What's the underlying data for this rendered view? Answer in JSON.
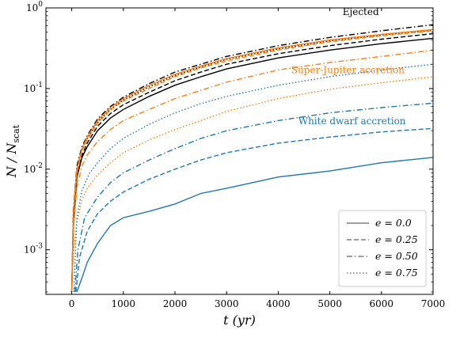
{
  "chart_data": {
    "type": "line",
    "xlabel": "t (yr)",
    "ylabel": "N / N_scat",
    "xlim": [
      -500,
      7000
    ],
    "ylim": [
      0.00028,
      1.0
    ],
    "yscale": "log",
    "grid": false,
    "legend_position": "bottom-right",
    "x_ticks": [
      0,
      1000,
      2000,
      3000,
      4000,
      5000,
      6000,
      7000
    ],
    "y_ticks": [
      0.001,
      0.01,
      0.1,
      1
    ],
    "y_tick_labels": [
      "10^-3",
      "10^-2",
      "10^-1",
      "10^0"
    ],
    "colors": {
      "ejected": "#000000",
      "super_jupiter": "#ff7f0e",
      "white_dwarf": "#1f77b4",
      "axis": "#000000"
    },
    "annotations": [
      {
        "text": "Ejected",
        "group": "ejected",
        "x": 5600,
        "y": 0.82
      },
      {
        "text": "Super-Jupiter accretion",
        "group": "super_jupiter",
        "x": 5350,
        "y": 0.155
      },
      {
        "text": "White dwarf accretion",
        "group": "white_dwarf",
        "x": 5430,
        "y": 0.036
      }
    ],
    "legend": [
      {
        "label": "e = 0.0",
        "e": "0.0",
        "style": "solid"
      },
      {
        "label": "e = 0.25",
        "e": "0.25",
        "style": "dashed"
      },
      {
        "label": "e = 0.50",
        "e": "0.50",
        "style": "dashdot"
      },
      {
        "label": "e = 0.75",
        "e": "0.75",
        "style": "dotted"
      }
    ],
    "series": [
      {
        "group": "ejected",
        "style": "solid",
        "x": [
          0,
          30,
          100,
          200,
          300,
          500,
          750,
          1000,
          1500,
          2000,
          2500,
          3000,
          4000,
          5000,
          6000,
          7000
        ],
        "y": [
          0.0003,
          0.002,
          0.008,
          0.014,
          0.019,
          0.03,
          0.043,
          0.055,
          0.08,
          0.11,
          0.14,
          0.175,
          0.24,
          0.3,
          0.36,
          0.42
        ]
      },
      {
        "group": "ejected",
        "style": "dashed",
        "x": [
          0,
          30,
          100,
          200,
          300,
          500,
          750,
          1000,
          1500,
          2000,
          2500,
          3000,
          4000,
          5000,
          6000,
          7000
        ],
        "y": [
          0.0003,
          0.002,
          0.008,
          0.015,
          0.021,
          0.034,
          0.049,
          0.063,
          0.09,
          0.125,
          0.16,
          0.2,
          0.27,
          0.34,
          0.41,
          0.48
        ]
      },
      {
        "group": "ejected",
        "style": "dashdot",
        "x": [
          0,
          30,
          100,
          200,
          300,
          500,
          750,
          1000,
          1500,
          2000,
          2500,
          3000,
          4000,
          5000,
          6000,
          7000
        ],
        "y": [
          0.0003,
          0.003,
          0.011,
          0.019,
          0.026,
          0.042,
          0.06,
          0.078,
          0.115,
          0.16,
          0.2,
          0.25,
          0.34,
          0.43,
          0.52,
          0.62
        ]
      },
      {
        "group": "ejected",
        "style": "dotted",
        "x": [
          0,
          30,
          100,
          200,
          300,
          500,
          750,
          1000,
          1500,
          2000,
          2500,
          3000,
          4000,
          5000,
          6000,
          7000
        ],
        "y": [
          0.0003,
          0.0028,
          0.01,
          0.018,
          0.024,
          0.038,
          0.055,
          0.072,
          0.105,
          0.145,
          0.185,
          0.23,
          0.31,
          0.39,
          0.46,
          0.53
        ]
      },
      {
        "group": "super_jupiter",
        "style": "solid",
        "x": [
          0,
          30,
          100,
          200,
          300,
          500,
          750,
          1000,
          1500,
          2000,
          2500,
          3000,
          4000,
          5000,
          6000,
          7000
        ],
        "y": [
          0.0003,
          0.0028,
          0.01,
          0.018,
          0.025,
          0.04,
          0.058,
          0.075,
          0.11,
          0.15,
          0.19,
          0.235,
          0.32,
          0.4,
          0.47,
          0.54
        ]
      },
      {
        "group": "super_jupiter",
        "style": "dashed",
        "x": [
          0,
          30,
          100,
          200,
          300,
          500,
          750,
          1000,
          1500,
          2000,
          2500,
          3000,
          4000,
          5000,
          6000,
          7000
        ],
        "y": [
          0.0003,
          0.0025,
          0.009,
          0.017,
          0.023,
          0.037,
          0.054,
          0.07,
          0.1,
          0.14,
          0.18,
          0.22,
          0.3,
          0.38,
          0.45,
          0.52
        ]
      },
      {
        "group": "super_jupiter",
        "style": "dashdot",
        "x": [
          0,
          30,
          100,
          200,
          300,
          500,
          750,
          1000,
          1500,
          2000,
          2500,
          3000,
          4000,
          5000,
          6000,
          7000
        ],
        "y": [
          0.0003,
          0.0018,
          0.006,
          0.011,
          0.015,
          0.022,
          0.031,
          0.04,
          0.055,
          0.075,
          0.095,
          0.12,
          0.17,
          0.21,
          0.25,
          0.3
        ]
      },
      {
        "group": "super_jupiter",
        "style": "dotted",
        "x": [
          0,
          30,
          100,
          200,
          300,
          500,
          750,
          1000,
          1500,
          2000,
          2500,
          3000,
          4000,
          5000,
          6000,
          7000
        ],
        "y": [
          0.0003,
          0.0009,
          0.0022,
          0.0042,
          0.0058,
          0.0085,
          0.012,
          0.016,
          0.023,
          0.031,
          0.04,
          0.052,
          0.075,
          0.098,
          0.118,
          0.14
        ]
      },
      {
        "group": "white_dwarf",
        "style": "solid",
        "x": [
          100,
          200,
          300,
          500,
          750,
          1000,
          1500,
          2000,
          2500,
          3000,
          4000,
          5000,
          6000,
          7000
        ],
        "y": [
          0.0003,
          0.00045,
          0.0007,
          0.0012,
          0.002,
          0.0025,
          0.003,
          0.0037,
          0.005,
          0.0058,
          0.008,
          0.0095,
          0.012,
          0.014
        ]
      },
      {
        "group": "white_dwarf",
        "style": "dashed",
        "x": [
          80,
          150,
          300,
          500,
          750,
          1000,
          1500,
          2000,
          2500,
          3000,
          4000,
          5000,
          6000,
          7000
        ],
        "y": [
          0.0003,
          0.0008,
          0.0017,
          0.0028,
          0.004,
          0.0052,
          0.0075,
          0.01,
          0.013,
          0.016,
          0.021,
          0.025,
          0.029,
          0.032
        ]
      },
      {
        "group": "white_dwarf",
        "style": "dashdot",
        "x": [
          60,
          120,
          250,
          500,
          750,
          1000,
          1500,
          2000,
          2500,
          3000,
          4000,
          5000,
          6000,
          7000
        ],
        "y": [
          0.0003,
          0.001,
          0.0025,
          0.0045,
          0.0068,
          0.009,
          0.013,
          0.018,
          0.024,
          0.03,
          0.04,
          0.05,
          0.058,
          0.066
        ]
      },
      {
        "group": "white_dwarf",
        "style": "dotted",
        "x": [
          40,
          100,
          200,
          350,
          500,
          750,
          1000,
          1500,
          2000,
          2500,
          3000,
          4000,
          5000,
          6000,
          7000
        ],
        "y": [
          0.0003,
          0.0025,
          0.0055,
          0.009,
          0.012,
          0.018,
          0.024,
          0.036,
          0.05,
          0.065,
          0.08,
          0.11,
          0.14,
          0.17,
          0.2
        ]
      }
    ]
  }
}
